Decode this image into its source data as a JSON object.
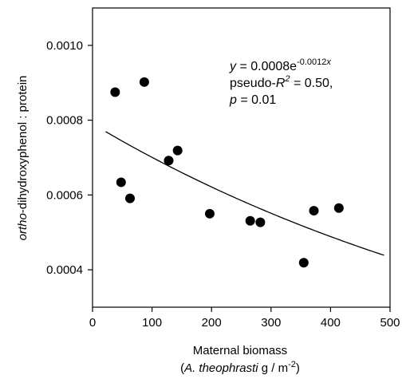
{
  "chart_data": {
    "type": "scatter",
    "xlabel_line1": "Maternal biomass",
    "xlabel_line2_open": "(",
    "xlabel_line2_italic": "A. theophrasti",
    "xlabel_line2_unit": " g / m",
    "xlabel_line2_sup": "-2",
    "xlabel_line2_close": ")",
    "ylabel_italic": "ortho",
    "ylabel_rest": "-dihydroxyphenol : protein",
    "xlim": [
      0,
      500
    ],
    "ylim": [
      0.0003,
      0.0011
    ],
    "x_ticks": [
      0,
      100,
      200,
      300,
      400,
      500
    ],
    "x_tick_labels": [
      "0",
      "100",
      "200",
      "300",
      "400",
      "500"
    ],
    "y_ticks": [
      0.0004,
      0.0006,
      0.0008,
      0.001
    ],
    "y_tick_labels": [
      "0.0004",
      "0.0006",
      "0.0008",
      "0.0010"
    ],
    "points": [
      {
        "x": 38,
        "y": 0.000875
      },
      {
        "x": 87,
        "y": 0.000902
      },
      {
        "x": 48,
        "y": 0.000634
      },
      {
        "x": 63,
        "y": 0.000591
      },
      {
        "x": 128,
        "y": 0.000692
      },
      {
        "x": 143,
        "y": 0.000719
      },
      {
        "x": 197,
        "y": 0.00055
      },
      {
        "x": 265,
        "y": 0.000531
      },
      {
        "x": 282,
        "y": 0.000527
      },
      {
        "x": 355,
        "y": 0.000419
      },
      {
        "x": 372,
        "y": 0.000558
      },
      {
        "x": 414,
        "y": 0.000565
      }
    ],
    "fit": {
      "type": "exponential",
      "a": 0.00079,
      "b": -0.0012,
      "x_range": [
        22,
        490
      ]
    },
    "annotation": {
      "line1_y": "y",
      "line1_eq": " = 0.0008e",
      "line1_exp": "-0.0012",
      "line1_expx": "x",
      "line2_text": "pseudo-",
      "line2_R": "R",
      "line2_sup": "2",
      "line2_rest": " = 0.50,",
      "line3_p": "p",
      "line3_rest": " = 0.01"
    }
  }
}
